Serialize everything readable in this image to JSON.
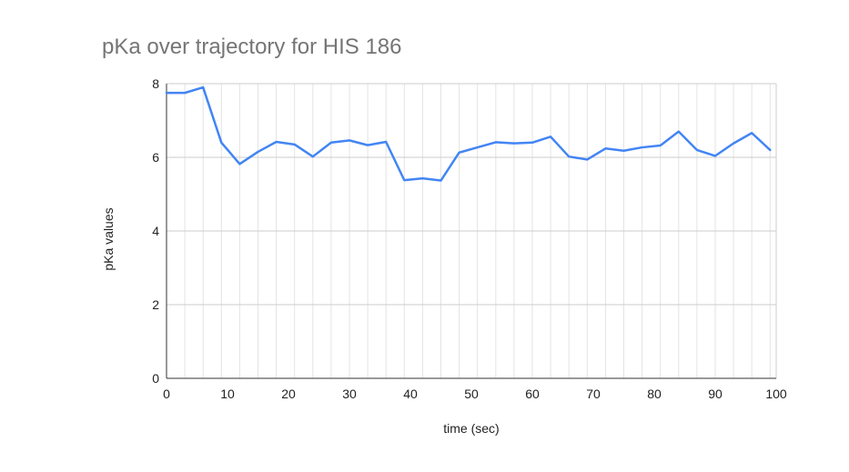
{
  "chart_data": {
    "type": "line",
    "title": "pKa over trajectory for HIS 186",
    "xlabel": "time (sec)",
    "ylabel": "pKa values",
    "xlim": [
      0,
      100
    ],
    "ylim": [
      0,
      8
    ],
    "x_ticks": [
      0,
      10,
      20,
      30,
      40,
      50,
      60,
      70,
      80,
      90,
      100
    ],
    "y_ticks": [
      0,
      2,
      4,
      6,
      8
    ],
    "grid": true,
    "legend": "none",
    "line_color": "#4285f4",
    "series": [
      {
        "x": [
          0,
          3,
          6,
          9,
          12,
          15,
          18,
          21,
          24,
          27,
          30,
          33,
          36,
          39,
          42,
          45,
          48,
          51,
          54,
          57,
          60,
          63,
          66,
          69,
          72,
          75,
          78,
          81,
          84,
          87,
          90,
          93,
          96,
          99
        ],
        "values": [
          7.75,
          7.75,
          7.9,
          6.4,
          5.82,
          6.15,
          6.42,
          6.35,
          6.02,
          6.4,
          6.46,
          6.33,
          6.42,
          5.38,
          5.43,
          5.37,
          6.13,
          6.27,
          6.41,
          6.38,
          6.4,
          6.56,
          6.02,
          5.94,
          6.24,
          6.18,
          6.27,
          6.32,
          6.7,
          6.2,
          6.04,
          6.38,
          6.66,
          6.2
        ]
      }
    ]
  }
}
